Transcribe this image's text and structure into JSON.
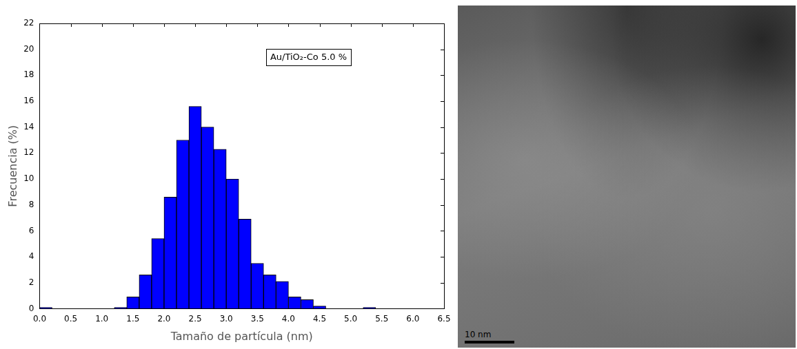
{
  "chart_data": {
    "type": "histogram",
    "annotations": [
      "Au/TiO₂-Co 5.0 %"
    ],
    "xlabel": "Tamaño de partícula (nm)",
    "ylabel": "Frecuencia (%)",
    "bins": [
      0.0,
      0.2,
      0.4,
      0.6,
      0.8,
      1.0,
      1.2,
      1.4,
      1.6,
      1.8,
      2.0,
      2.2,
      2.4,
      2.6,
      2.8,
      3.0,
      3.2,
      3.4,
      3.6,
      3.8,
      4.0,
      4.2,
      4.4,
      4.6,
      4.8,
      5.0,
      5.2,
      5.4
    ],
    "values": [
      0.1,
      0,
      0,
      0,
      0,
      0,
      0.1,
      0.9,
      2.6,
      5.4,
      8.6,
      13.0,
      15.6,
      14.0,
      12.3,
      10.0,
      6.9,
      3.5,
      2.6,
      2.1,
      0.9,
      0.7,
      0.2,
      0,
      0,
      0,
      0.1
    ],
    "color": "#0000ff",
    "xlim": [
      0,
      6.5
    ],
    "xticks": [
      {
        "value": 0,
        "label": "0.0"
      },
      {
        "value": 0.5,
        "label": "0.5"
      },
      {
        "value": 1,
        "label": "1.0"
      },
      {
        "value": 1.5,
        "label": "1.5"
      },
      {
        "value": 2,
        "label": "2.0"
      },
      {
        "value": 2.5,
        "label": "2.5"
      },
      {
        "value": 3,
        "label": "3.0"
      },
      {
        "value": 3.5,
        "label": "3.5"
      },
      {
        "value": 4,
        "label": "4.0"
      },
      {
        "value": 4.5,
        "label": "4.5"
      },
      {
        "value": 5,
        "label": "5.0"
      },
      {
        "value": 5.5,
        "label": "5.5"
      },
      {
        "value": 6,
        "label": "6.0"
      },
      {
        "value": 6.5,
        "label": "6.5"
      }
    ],
    "ylim": [
      0,
      22
    ],
    "yticks": [
      0,
      2,
      4,
      6,
      8,
      10,
      12,
      14,
      16,
      18,
      20,
      22
    ],
    "grid": false
  },
  "micrograph": {
    "scale_bar": "10 nm"
  }
}
